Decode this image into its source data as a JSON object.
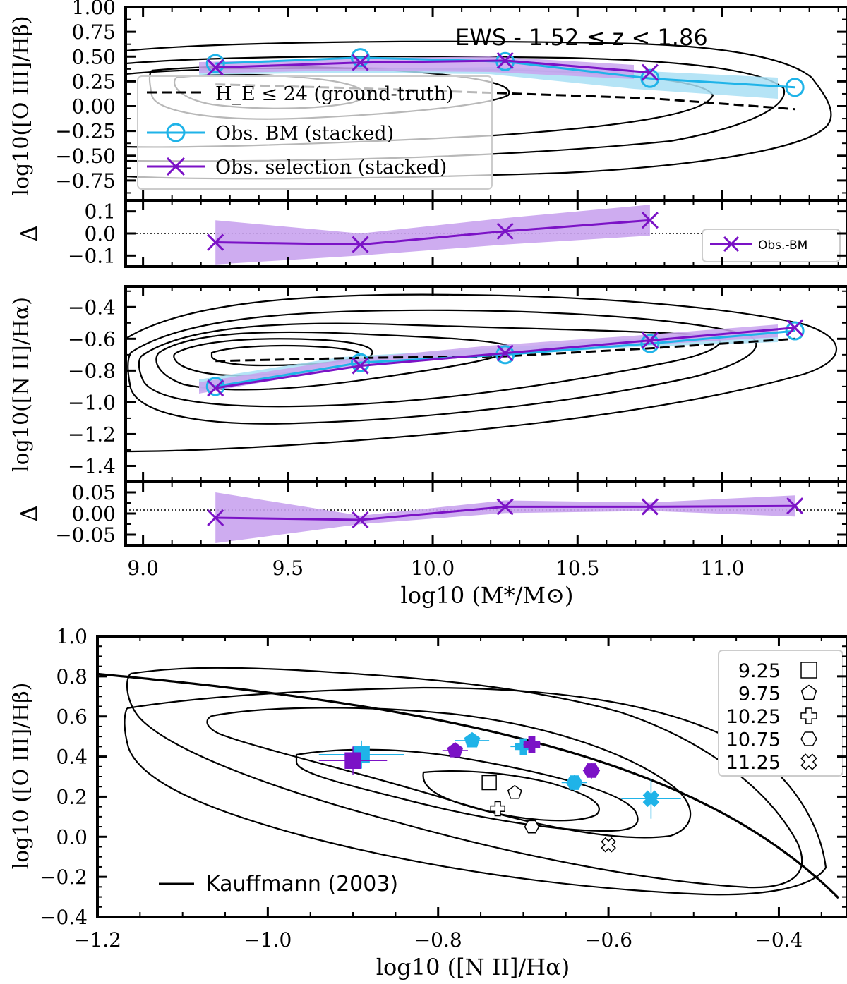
{
  "colors": {
    "cyan": "#1fb3e8",
    "purple": "#7b12c6",
    "purple_fill": "#c9a3ee",
    "cyan_fill": "#a8dff4",
    "black": "#000000"
  },
  "chart_data": [
    {
      "id": "oiii_mass",
      "type": "line",
      "title": "EWS - 1.52 ≤ z < 1.86",
      "xlabel": "",
      "ylabel": "log10([O III]/Hβ)",
      "xlim": [
        8.94,
        11.43
      ],
      "ylim": [
        -0.95,
        1.0
      ],
      "y_ticks": [
        "1.00",
        "0.75",
        "0.50",
        "0.25",
        "0.00",
        "−0.25",
        "−0.50",
        "−0.75"
      ],
      "y_tick_values": [
        1.0,
        0.75,
        0.5,
        0.25,
        0.0,
        -0.25,
        -0.5,
        -0.75
      ],
      "series": [
        {
          "name": "H_E ≤ 24 (ground-truth)",
          "style": "dashed",
          "x": [
            9.25,
            9.75,
            10.25,
            10.75,
            11.25
          ],
          "values": [
            0.22,
            0.18,
            0.13,
            0.08,
            -0.03
          ]
        },
        {
          "name": "Obs. BM (stacked)",
          "style": "cyan-circle",
          "x": [
            9.25,
            9.75,
            10.25,
            10.75,
            11.25
          ],
          "values": [
            0.43,
            0.49,
            0.45,
            0.28,
            0.19
          ]
        },
        {
          "name": "Obs. selection (stacked)",
          "style": "purple-x",
          "x": [
            9.25,
            9.75,
            10.25,
            10.75
          ],
          "values": [
            0.39,
            0.44,
            0.46,
            0.34
          ]
        }
      ],
      "legend": [
        {
          "label": "H_E ≤ 24 (ground-truth)"
        },
        {
          "label": "Obs. BM (stacked)"
        },
        {
          "label": "Obs. selection (stacked)"
        }
      ]
    },
    {
      "id": "delta1",
      "type": "line",
      "ylabel": "Δ",
      "xlim": [
        8.94,
        11.43
      ],
      "ylim": [
        -0.15,
        0.15
      ],
      "y_ticks": [
        "0.1",
        "0.0",
        "−0.1"
      ],
      "y_tick_values": [
        0.1,
        0.0,
        -0.1
      ],
      "series": [
        {
          "name": "Obs.-BM",
          "x": [
            9.25,
            9.75,
            10.25,
            10.75
          ],
          "values": [
            -0.04,
            -0.05,
            0.01,
            0.06
          ],
          "band": [
            0.1,
            0.05,
            0.06,
            0.07
          ]
        }
      ],
      "legend_label": "Obs.-BM"
    },
    {
      "id": "nii_mass",
      "type": "line",
      "ylabel": "log10([N II]/Hα)",
      "xlim": [
        8.94,
        11.43
      ],
      "ylim": [
        -1.5,
        -0.27
      ],
      "y_ticks": [
        "−0.4",
        "−0.6",
        "−0.8",
        "−1.0",
        "−1.2",
        "−1.4"
      ],
      "y_tick_values": [
        -0.4,
        -0.6,
        -0.8,
        -1.0,
        -1.2,
        -1.4
      ],
      "series": [
        {
          "name": "ground-truth",
          "style": "dashed",
          "x": [
            9.25,
            9.75,
            10.25,
            10.75,
            11.25
          ],
          "values": [
            -0.74,
            -0.72,
            -0.71,
            -0.66,
            -0.6
          ]
        },
        {
          "name": "Obs. BM (stacked)",
          "style": "cyan-circle",
          "x": [
            9.25,
            9.75,
            10.25,
            10.75,
            11.25
          ],
          "values": [
            -0.9,
            -0.75,
            -0.7,
            -0.63,
            -0.55
          ]
        },
        {
          "name": "Obs. selection (stacked)",
          "style": "purple-x",
          "x": [
            9.25,
            9.75,
            10.25,
            10.75,
            11.25
          ],
          "values": [
            -0.91,
            -0.77,
            -0.69,
            -0.61,
            -0.53
          ]
        }
      ]
    },
    {
      "id": "delta2",
      "type": "line",
      "ylabel": "Δ",
      "xlabel": "log10 (M*/M⊙)",
      "xlim": [
        8.94,
        11.43
      ],
      "ylim": [
        -0.075,
        0.075
      ],
      "y_ticks": [
        "0.05",
        "0.00",
        "−0.05"
      ],
      "y_tick_values": [
        0.05,
        0.0,
        -0.05
      ],
      "x_ticks": [
        "9.0",
        "9.5",
        "10.0",
        "10.5",
        "11.0"
      ],
      "x_tick_values": [
        9.0,
        9.5,
        10.0,
        10.5,
        11.0
      ],
      "series": [
        {
          "name": "Obs.-BM",
          "x": [
            9.25,
            9.75,
            10.25,
            10.75,
            11.25
          ],
          "values": [
            -0.01,
            -0.015,
            0.016,
            0.016,
            0.018
          ],
          "band": [
            0.06,
            0.01,
            0.015,
            0.01,
            0.025
          ]
        }
      ]
    },
    {
      "id": "bpt",
      "type": "scatter",
      "xlabel": "log10 ([N II]/Hα)",
      "ylabel": "log10 ([O III]/Hβ)",
      "xlim": [
        -1.2,
        -0.32
      ],
      "ylim": [
        -0.4,
        1.0
      ],
      "x_ticks": [
        "−1.2",
        "−1.0",
        "−0.8",
        "−0.6",
        "−0.4"
      ],
      "x_tick_values": [
        -1.2,
        -1.0,
        -0.8,
        -0.6,
        -0.4
      ],
      "y_ticks": [
        "1.0",
        "0.8",
        "0.6",
        "0.4",
        "0.2",
        "0.0",
        "−0.2",
        "−0.4"
      ],
      "y_tick_values": [
        1.0,
        0.8,
        0.6,
        0.4,
        0.2,
        0.0,
        -0.2,
        -0.4
      ],
      "curve_label": "Kauffmann (2003)",
      "legend": [
        {
          "label": "9.25",
          "marker": "square"
        },
        {
          "label": "9.75",
          "marker": "pentagon"
        },
        {
          "label": "10.25",
          "marker": "plus"
        },
        {
          "label": "10.75",
          "marker": "hexagon"
        },
        {
          "label": "11.25",
          "marker": "x"
        }
      ],
      "points": [
        {
          "set": "ground-truth",
          "marker": "square",
          "x": -0.74,
          "y": 0.27
        },
        {
          "set": "ground-truth",
          "marker": "pentagon",
          "x": -0.71,
          "y": 0.22
        },
        {
          "set": "ground-truth",
          "marker": "plus",
          "x": -0.73,
          "y": 0.14
        },
        {
          "set": "ground-truth",
          "marker": "hexagon",
          "x": -0.69,
          "y": 0.05
        },
        {
          "set": "ground-truth",
          "marker": "x",
          "x": -0.6,
          "y": -0.04
        },
        {
          "set": "obs-bm",
          "marker": "square",
          "x": -0.89,
          "y": 0.41
        },
        {
          "set": "obs-bm",
          "marker": "pentagon",
          "x": -0.76,
          "y": 0.48
        },
        {
          "set": "obs-bm",
          "marker": "plus",
          "x": -0.7,
          "y": 0.45
        },
        {
          "set": "obs-bm",
          "marker": "hexagon",
          "x": -0.64,
          "y": 0.27
        },
        {
          "set": "obs-bm",
          "marker": "x",
          "x": -0.55,
          "y": 0.19
        },
        {
          "set": "obs-selection",
          "marker": "square",
          "x": -0.9,
          "y": 0.38
        },
        {
          "set": "obs-selection",
          "marker": "pentagon",
          "x": -0.78,
          "y": 0.43
        },
        {
          "set": "obs-selection",
          "marker": "plus",
          "x": -0.69,
          "y": 0.46
        },
        {
          "set": "obs-selection",
          "marker": "hexagon",
          "x": -0.62,
          "y": 0.33
        }
      ]
    }
  ]
}
